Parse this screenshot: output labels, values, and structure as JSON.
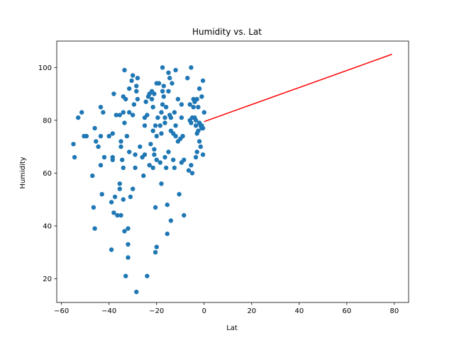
{
  "chart_data": {
    "type": "scatter",
    "title": "Humidity vs. Lat",
    "xlabel": "Lat",
    "ylabel": "Humidity",
    "xlim": [
      -62,
      86
    ],
    "ylim": [
      11,
      110
    ],
    "xticks": [
      -60,
      -40,
      -20,
      0,
      20,
      40,
      60,
      80
    ],
    "yticks": [
      20,
      40,
      60,
      80,
      100
    ],
    "grid": false,
    "point_color": "#1f77b4",
    "line_color": "#ff0000",
    "points": [
      [
        -55,
        71
      ],
      [
        -54.5,
        66
      ],
      [
        -53,
        81
      ],
      [
        -51.5,
        83
      ],
      [
        -50.5,
        74
      ],
      [
        -49.5,
        74
      ],
      [
        -47,
        59
      ],
      [
        -46.5,
        47
      ],
      [
        -46,
        39
      ],
      [
        -46,
        77
      ],
      [
        -45.5,
        72
      ],
      [
        -44.5,
        70
      ],
      [
        -43.5,
        74
      ],
      [
        -43.5,
        63
      ],
      [
        -43.5,
        85
      ],
      [
        -43,
        52
      ],
      [
        -42.5,
        83
      ],
      [
        -42,
        66
      ],
      [
        -40,
        74
      ],
      [
        -39,
        31
      ],
      [
        -39,
        49
      ],
      [
        -38.5,
        65
      ],
      [
        -38.5,
        66
      ],
      [
        -38.5,
        75
      ],
      [
        -38,
        90
      ],
      [
        -38,
        45
      ],
      [
        -37.5,
        51
      ],
      [
        -37,
        82
      ],
      [
        -36.5,
        44
      ],
      [
        -35.5,
        54
      ],
      [
        -35.5,
        56
      ],
      [
        -35.5,
        82
      ],
      [
        -35,
        44
      ],
      [
        -35,
        70
      ],
      [
        -35,
        72
      ],
      [
        -34.5,
        65
      ],
      [
        -34,
        50
      ],
      [
        -34,
        62
      ],
      [
        -34,
        83
      ],
      [
        -34,
        89
      ],
      [
        -33.5,
        38
      ],
      [
        -33.5,
        79
      ],
      [
        -33.5,
        99
      ],
      [
        -33,
        21
      ],
      [
        -33,
        88
      ],
      [
        -32.5,
        74
      ],
      [
        -32,
        39
      ],
      [
        -32,
        33
      ],
      [
        -32,
        28
      ],
      [
        -31.5,
        68
      ],
      [
        -31.5,
        92
      ],
      [
        -31.5,
        83
      ],
      [
        -31,
        51
      ],
      [
        -30.5,
        95
      ],
      [
        -30,
        54
      ],
      [
        -30,
        97
      ],
      [
        -30,
        82
      ],
      [
        -29.5,
        86
      ],
      [
        -29,
        62
      ],
      [
        -29,
        67
      ],
      [
        -28.5,
        15
      ],
      [
        -28.5,
        93
      ],
      [
        -28.5,
        91
      ],
      [
        -28,
        88
      ],
      [
        -28,
        96
      ],
      [
        -27,
        70
      ],
      [
        -26,
        66
      ],
      [
        -25.5,
        59
      ],
      [
        -25,
        67
      ],
      [
        -25,
        78
      ],
      [
        -25,
        81
      ],
      [
        -24.5,
        87
      ],
      [
        -24,
        21
      ],
      [
        -24,
        82
      ],
      [
        -23.5,
        89
      ],
      [
        -23,
        90
      ],
      [
        -23,
        63
      ],
      [
        -22.5,
        71
      ],
      [
        -22,
        88
      ],
      [
        -22,
        91
      ],
      [
        -21.5,
        85
      ],
      [
        -21.5,
        76
      ],
      [
        -21.5,
        62
      ],
      [
        -21,
        67
      ],
      [
        -21,
        69
      ],
      [
        -21,
        90
      ],
      [
        -20.5,
        30
      ],
      [
        -20.5,
        47
      ],
      [
        -20.5,
        78
      ],
      [
        -20,
        32
      ],
      [
        -20,
        65
      ],
      [
        -20,
        74
      ],
      [
        -20,
        94
      ],
      [
        -19.5,
        81
      ],
      [
        -19,
        94
      ],
      [
        -18.5,
        78
      ],
      [
        -18.5,
        64
      ],
      [
        -18,
        56
      ],
      [
        -18,
        75
      ],
      [
        -18,
        83
      ],
      [
        -17.5,
        100
      ],
      [
        -17.5,
        86
      ],
      [
        -17.5,
        91
      ],
      [
        -17,
        93
      ],
      [
        -17,
        89
      ],
      [
        -16.5,
        81
      ],
      [
        -16.5,
        79
      ],
      [
        -16.5,
        66
      ],
      [
        -16,
        85
      ],
      [
        -16,
        62
      ],
      [
        -15.5,
        48
      ],
      [
        -15.5,
        37
      ],
      [
        -15,
        68
      ],
      [
        -15,
        91
      ],
      [
        -15,
        98
      ],
      [
        -14.5,
        82
      ],
      [
        -14.5,
        96
      ],
      [
        -14,
        76
      ],
      [
        -14,
        81
      ],
      [
        -14,
        42
      ],
      [
        -13.5,
        94
      ],
      [
        -13,
        65
      ],
      [
        -13,
        75
      ],
      [
        -12.5,
        62
      ],
      [
        -12.5,
        83
      ],
      [
        -12,
        99
      ],
      [
        -12,
        74
      ],
      [
        -12,
        78
      ],
      [
        -11,
        88
      ],
      [
        -11,
        72
      ],
      [
        -10.5,
        52
      ],
      [
        -10,
        73
      ],
      [
        -9.5,
        64
      ],
      [
        -9.5,
        81
      ],
      [
        -9.5,
        86
      ],
      [
        -9,
        74
      ],
      [
        -8.5,
        44
      ],
      [
        -8.5,
        65
      ],
      [
        -7,
        96
      ],
      [
        -6.5,
        61
      ],
      [
        -6,
        80
      ],
      [
        -6,
        86
      ],
      [
        -5.5,
        100
      ],
      [
        -5.5,
        63
      ],
      [
        -5.5,
        79
      ],
      [
        -5,
        60
      ],
      [
        -5,
        81
      ],
      [
        -4.5,
        85
      ],
      [
        -4.5,
        88
      ],
      [
        -4,
        81
      ],
      [
        -4,
        87
      ],
      [
        -3.5,
        80
      ],
      [
        -3.5,
        66
      ],
      [
        -3.5,
        78
      ],
      [
        -3,
        68
      ],
      [
        -3,
        75
      ],
      [
        -3,
        88
      ],
      [
        -2.5,
        76
      ],
      [
        -2.5,
        85
      ],
      [
        -2,
        72
      ],
      [
        -2,
        79
      ],
      [
        -2,
        92
      ],
      [
        -1.5,
        70
      ],
      [
        -1.5,
        78
      ],
      [
        -1,
        89
      ],
      [
        -1,
        77
      ],
      [
        -1,
        78
      ],
      [
        -0.5,
        67
      ],
      [
        -0.5,
        95
      ],
      [
        -0.5,
        77
      ],
      [
        0,
        83
      ]
    ],
    "regression_line": {
      "x": [
        0,
        79
      ],
      "y": [
        79.5,
        105
      ]
    }
  }
}
